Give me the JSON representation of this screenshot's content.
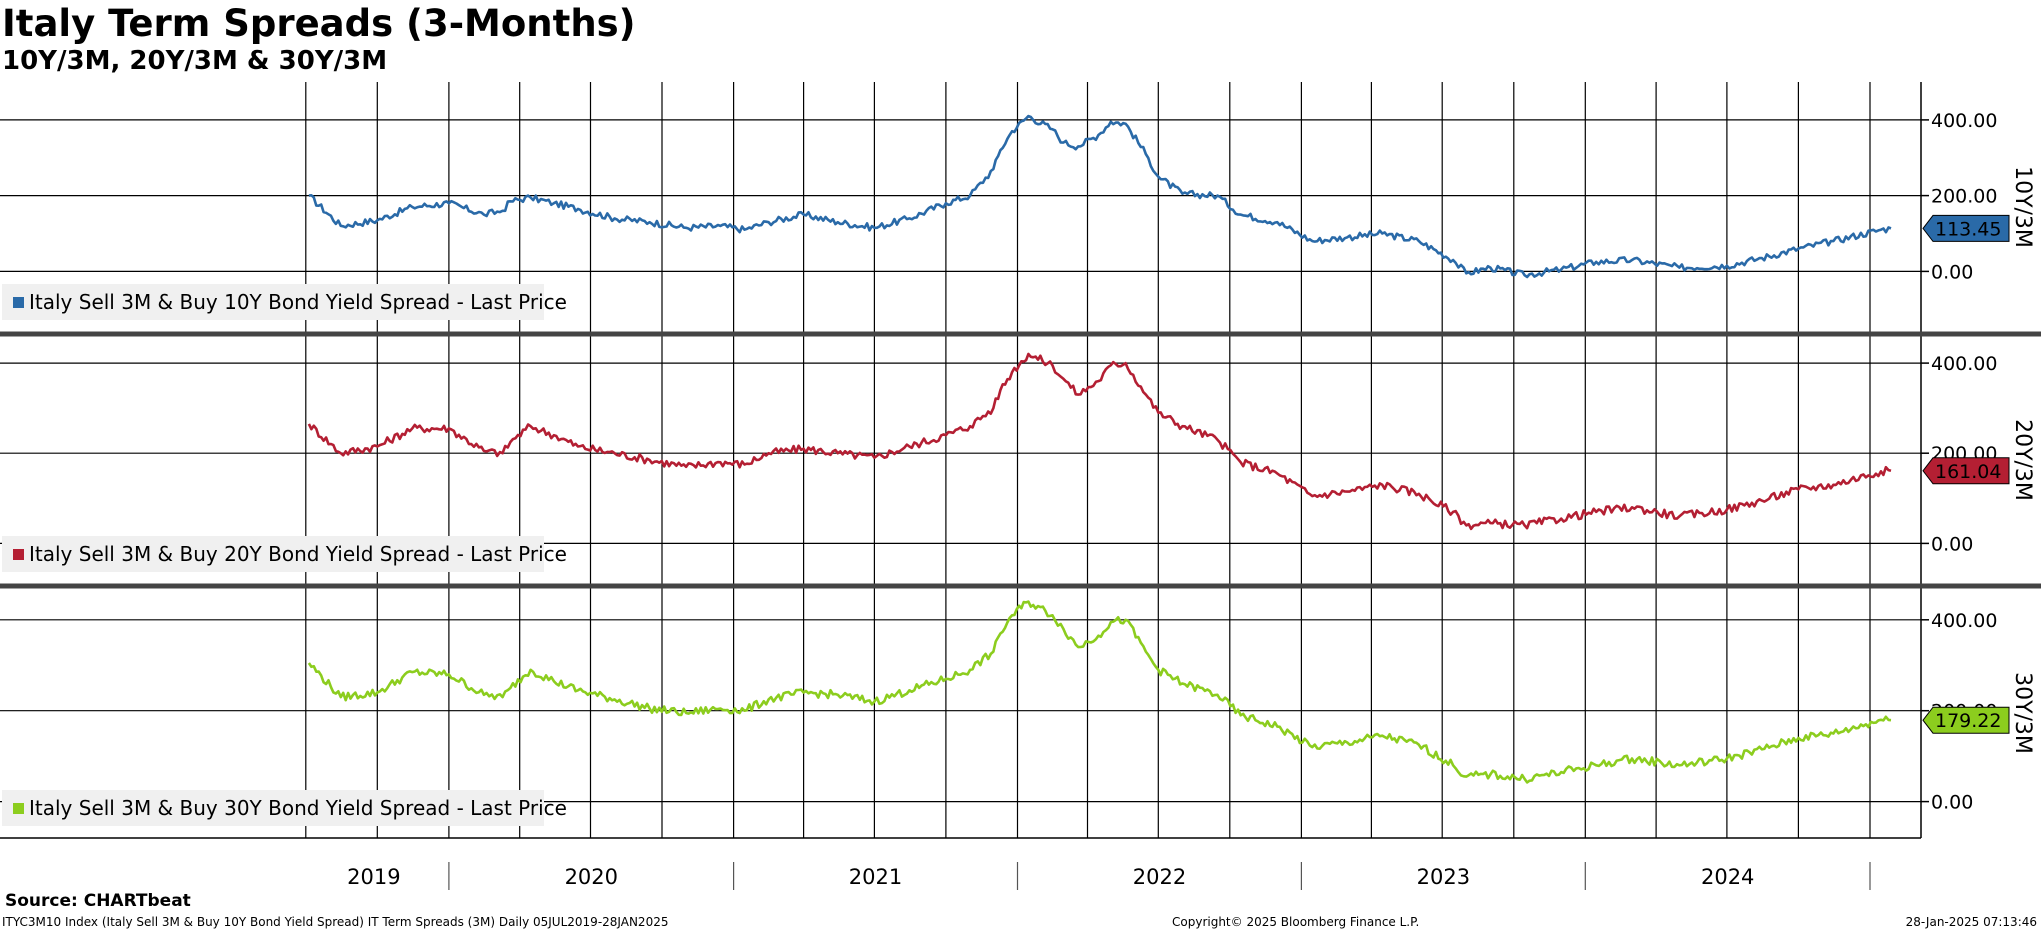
{
  "header": {
    "title": "Italy Term Spreads (3-Months)",
    "subtitle": "10Y/3M, 20Y/3M & 30Y/3M"
  },
  "footer": {
    "source": "Source: CHARTbeat",
    "ticker": "ITYC3M10 Index (Italy Sell 3M & Buy 10Y Bond Yield Spread) IT Term Spreads (3M)  Daily 05JUL2019-28JAN2025",
    "copyright": "Copyright© 2025 Bloomberg Finance L.P.",
    "timestamp": "28-Jan-2025 07:13:46"
  },
  "chart_data": [
    {
      "type": "line",
      "panel_label": "10Y/3M",
      "legend": "Italy Sell 3M & Buy 10Y Bond Yield Spread - Last Price",
      "color": "#2a6aa8",
      "last_value": 113.45,
      "last_value_label": "113.45",
      "ylim": [
        -160,
        500
      ],
      "yticks": [
        0,
        200,
        400
      ],
      "ytick_labels": [
        "0.00",
        "200.00",
        "400.00"
      ],
      "x": [
        "2019-07-05",
        "2019-08-15",
        "2019-10-01",
        "2019-11-15",
        "2020-01-01",
        "2020-02-15",
        "2020-03-10",
        "2020-03-20",
        "2020-04-15",
        "2020-05-15",
        "2020-06-15",
        "2020-08-01",
        "2020-09-15",
        "2020-11-01",
        "2020-12-15",
        "2021-01-15",
        "2021-02-15",
        "2021-04-01",
        "2021-05-15",
        "2021-07-01",
        "2021-08-15",
        "2021-10-01",
        "2021-11-01",
        "2021-12-01",
        "2021-12-10",
        "2021-12-25",
        "2022-01-15",
        "2022-02-15",
        "2022-03-01",
        "2022-03-20",
        "2022-04-15",
        "2022-05-01",
        "2022-05-20",
        "2022-06-15",
        "2022-07-01",
        "2022-08-01",
        "2022-09-15",
        "2022-10-15",
        "2022-12-01",
        "2023-01-15",
        "2023-03-01",
        "2023-04-15",
        "2023-06-01",
        "2023-07-15",
        "2023-08-01",
        "2023-09-01",
        "2023-10-15",
        "2023-12-01",
        "2024-01-15",
        "2024-03-01",
        "2024-05-01",
        "2024-07-01",
        "2024-08-15",
        "2024-10-01",
        "2024-11-15",
        "2025-01-15",
        "2025-01-28"
      ],
      "y": [
        200,
        120,
        135,
        170,
        180,
        150,
        160,
        185,
        195,
        180,
        165,
        140,
        130,
        115,
        120,
        110,
        130,
        150,
        130,
        115,
        140,
        180,
        200,
        270,
        320,
        370,
        410,
        375,
        340,
        330,
        360,
        395,
        390,
        310,
        250,
        205,
        200,
        150,
        130,
        80,
        90,
        100,
        80,
        30,
        -5,
        10,
        -10,
        5,
        25,
        30,
        10,
        15,
        35,
        60,
        80,
        110,
        113.45
      ]
    },
    {
      "type": "line",
      "panel_label": "20Y/3M",
      "legend": "Italy Sell 3M & Buy 20Y Bond Yield Spread - Last Price",
      "color": "#b41f33",
      "last_value": 161.04,
      "last_value_label": "161.04",
      "ylim": [
        -90,
        460
      ],
      "yticks": [
        0,
        200,
        400
      ],
      "ytick_labels": [
        "0.00",
        "200.00",
        "400.00"
      ],
      "x": [
        "2019-07-05",
        "2019-08-15",
        "2019-10-01",
        "2019-11-15",
        "2020-01-01",
        "2020-02-15",
        "2020-03-10",
        "2020-03-20",
        "2020-04-15",
        "2020-05-15",
        "2020-06-15",
        "2020-08-01",
        "2020-09-15",
        "2020-11-01",
        "2020-12-15",
        "2021-01-15",
        "2021-02-15",
        "2021-04-01",
        "2021-05-15",
        "2021-07-01",
        "2021-08-15",
        "2021-10-01",
        "2021-11-01",
        "2021-12-01",
        "2021-12-10",
        "2021-12-25",
        "2022-01-15",
        "2022-02-15",
        "2022-03-01",
        "2022-03-20",
        "2022-04-15",
        "2022-05-01",
        "2022-05-20",
        "2022-06-15",
        "2022-07-01",
        "2022-08-01",
        "2022-09-15",
        "2022-10-15",
        "2022-12-01",
        "2023-01-15",
        "2023-03-01",
        "2023-04-15",
        "2023-06-01",
        "2023-07-15",
        "2023-08-01",
        "2023-09-01",
        "2023-10-15",
        "2023-12-01",
        "2024-01-15",
        "2024-03-01",
        "2024-05-01",
        "2024-07-01",
        "2024-08-15",
        "2024-10-01",
        "2024-11-15",
        "2025-01-15",
        "2025-01-28"
      ],
      "y": [
        265,
        200,
        215,
        255,
        255,
        205,
        200,
        225,
        260,
        240,
        215,
        200,
        185,
        170,
        180,
        175,
        200,
        210,
        200,
        190,
        215,
        240,
        260,
        300,
        340,
        380,
        420,
        395,
        365,
        330,
        360,
        395,
        400,
        330,
        290,
        260,
        230,
        180,
        155,
        105,
        115,
        130,
        110,
        70,
        40,
        45,
        40,
        55,
        70,
        80,
        60,
        75,
        95,
        120,
        130,
        160,
        161.04
      ]
    },
    {
      "type": "line",
      "panel_label": "30Y/3M",
      "legend": "Italy Sell 3M & Buy 30Y Bond Yield Spread - Last Price",
      "color": "#8ccd1e",
      "last_value": 179.22,
      "last_value_label": "179.22",
      "ylim": [
        -80,
        470
      ],
      "yticks": [
        0,
        200,
        400
      ],
      "ytick_labels": [
        "0.00",
        "200.00",
        "400.00"
      ],
      "x": [
        "2019-07-05",
        "2019-08-15",
        "2019-10-01",
        "2019-11-15",
        "2020-01-01",
        "2020-02-15",
        "2020-03-10",
        "2020-03-20",
        "2020-04-15",
        "2020-05-15",
        "2020-06-15",
        "2020-08-01",
        "2020-09-15",
        "2020-11-01",
        "2020-12-15",
        "2021-01-15",
        "2021-02-15",
        "2021-04-01",
        "2021-05-15",
        "2021-07-01",
        "2021-08-15",
        "2021-10-01",
        "2021-11-01",
        "2021-12-01",
        "2021-12-10",
        "2021-12-25",
        "2022-01-15",
        "2022-02-15",
        "2022-03-01",
        "2022-03-20",
        "2022-04-15",
        "2022-05-01",
        "2022-05-20",
        "2022-06-15",
        "2022-07-01",
        "2022-08-01",
        "2022-09-15",
        "2022-10-15",
        "2022-12-01",
        "2023-01-15",
        "2023-03-01",
        "2023-04-15",
        "2023-06-01",
        "2023-07-15",
        "2023-08-01",
        "2023-09-01",
        "2023-10-15",
        "2023-12-01",
        "2024-01-15",
        "2024-03-01",
        "2024-05-01",
        "2024-07-01",
        "2024-08-15",
        "2024-10-01",
        "2024-11-15",
        "2025-01-15",
        "2025-01-28"
      ],
      "y": [
        305,
        230,
        240,
        285,
        280,
        235,
        230,
        250,
        290,
        265,
        245,
        225,
        205,
        195,
        205,
        200,
        225,
        240,
        235,
        220,
        245,
        270,
        290,
        330,
        370,
        410,
        440,
        410,
        380,
        340,
        365,
        395,
        400,
        330,
        290,
        260,
        235,
        190,
        165,
        120,
        130,
        145,
        125,
        80,
        55,
        60,
        50,
        65,
        80,
        95,
        80,
        95,
        115,
        140,
        150,
        180,
        179.22
      ]
    }
  ],
  "x_axis": {
    "year_labels": [
      "2019",
      "2020",
      "2021",
      "2022",
      "2023",
      "2024"
    ]
  }
}
